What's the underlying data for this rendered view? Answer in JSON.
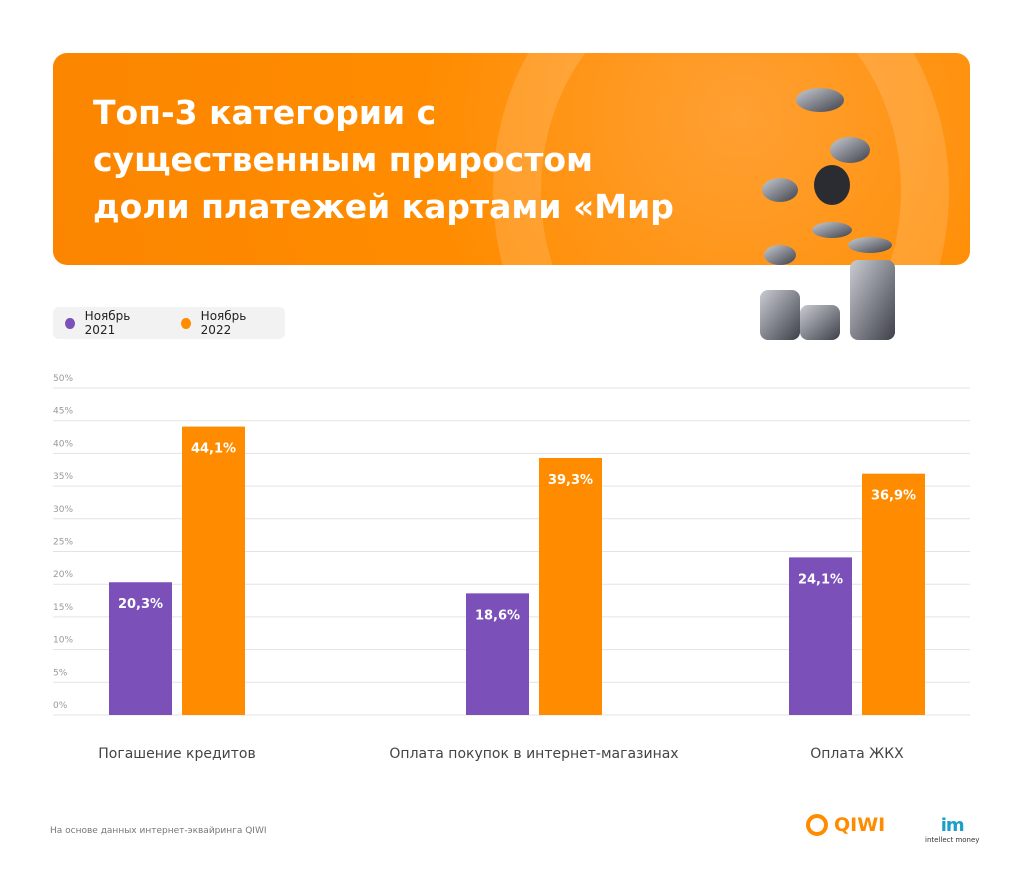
{
  "title": "Топ-3 категории с существенным приростом доли платежей картами «Мир",
  "title_lines": [
    "Топ-3 категории с",
    "существенным приростом",
    "доли платежей картами «Мир"
  ],
  "legend": [
    {
      "label": "Ноябрь 2021",
      "color": "#7b50b8"
    },
    {
      "label": "Ноябрь 2022",
      "color": "#ff8c00"
    }
  ],
  "chart_data": {
    "type": "bar",
    "categories": [
      "Погашение кредитов",
      "Оплата покупок в интернет-магазинах",
      "Оплата ЖКХ"
    ],
    "series": [
      {
        "name": "Ноябрь 2021",
        "color": "#7b50b8",
        "values": [
          20.3,
          18.6,
          24.1
        ],
        "labels": [
          "20,3%",
          "18,6%",
          "24,1%"
        ]
      },
      {
        "name": "Ноябрь 2022",
        "color": "#ff8c00",
        "values": [
          44.1,
          39.3,
          36.9
        ],
        "labels": [
          "44,1%",
          "39,3%",
          "36,9%"
        ]
      }
    ],
    "ylim": [
      0,
      50
    ],
    "yticks": [
      0,
      5,
      10,
      15,
      20,
      25,
      30,
      35,
      40,
      45,
      50
    ],
    "ytick_labels": [
      "0%",
      "5%",
      "10%",
      "15%",
      "20%",
      "25%",
      "30%",
      "35%",
      "40%",
      "45%",
      "50%"
    ],
    "grid": true,
    "legend_position": "top-left"
  },
  "footnote": "На основе данных интернет-эквайринга QIWI",
  "logos": {
    "qiwi": "QIWI",
    "intellect_money": "intellect money",
    "intellect_money_mark": "im"
  }
}
